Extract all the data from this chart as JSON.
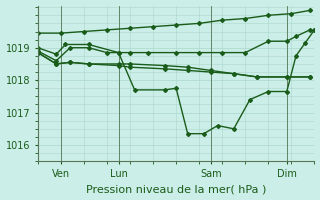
{
  "background_color": "#cceee8",
  "grid_color": "#aad8cc",
  "line_color": "#1a5c1a",
  "marker": "D",
  "marker_size": 2,
  "linewidth": 1.0,
  "xlabel": "Pression niveau de la mer( hPa )",
  "xlabel_fontsize": 8,
  "tick_label_fontsize": 7,
  "yticks": [
    1016,
    1017,
    1018,
    1019
  ],
  "ymin": 1015.5,
  "ymax": 1020.3,
  "xmin": 0,
  "xmax": 120,
  "xtick_positions": [
    10,
    35,
    75,
    108
  ],
  "xtick_labels": [
    "Ven",
    "Lun",
    "Sam",
    "Dim"
  ],
  "vlines": [
    10,
    35,
    75,
    108
  ],
  "series": [
    {
      "x": [
        0,
        10,
        20,
        30,
        40,
        50,
        60,
        70,
        80,
        90,
        100,
        110,
        118
      ],
      "y": [
        1019.45,
        1019.45,
        1019.5,
        1019.55,
        1019.6,
        1019.65,
        1019.7,
        1019.75,
        1019.85,
        1019.9,
        1020.0,
        1020.05,
        1020.15
      ]
    },
    {
      "x": [
        0,
        8,
        12,
        22,
        35,
        40,
        48,
        60,
        70,
        80,
        90,
        100,
        108,
        112,
        118
      ],
      "y": [
        1019.0,
        1018.8,
        1019.1,
        1019.1,
        1018.85,
        1018.85,
        1018.85,
        1018.85,
        1018.85,
        1018.85,
        1018.85,
        1019.2,
        1019.2,
        1019.35,
        1019.55
      ]
    },
    {
      "x": [
        0,
        8,
        14,
        22,
        35,
        40,
        55,
        65,
        75,
        85,
        95,
        108,
        118
      ],
      "y": [
        1018.85,
        1018.5,
        1018.55,
        1018.5,
        1018.45,
        1018.4,
        1018.35,
        1018.3,
        1018.25,
        1018.2,
        1018.1,
        1018.1,
        1018.1
      ]
    },
    {
      "x": [
        0,
        8,
        14,
        22,
        35,
        40,
        55,
        65,
        75,
        85,
        95,
        108,
        118
      ],
      "y": [
        1018.85,
        1018.5,
        1018.55,
        1018.5,
        1018.5,
        1018.5,
        1018.45,
        1018.4,
        1018.3,
        1018.2,
        1018.1,
        1018.1,
        1018.1
      ]
    },
    {
      "x": [
        0,
        8,
        14,
        22,
        30,
        35,
        42,
        55,
        60,
        65,
        72,
        78,
        85,
        92,
        100,
        108,
        112,
        116,
        120
      ],
      "y": [
        1018.9,
        1018.6,
        1019.0,
        1019.0,
        1018.85,
        1018.85,
        1017.7,
        1017.7,
        1017.75,
        1016.35,
        1016.35,
        1016.6,
        1016.5,
        1017.4,
        1017.65,
        1017.65,
        1018.75,
        1019.15,
        1019.55
      ]
    }
  ]
}
